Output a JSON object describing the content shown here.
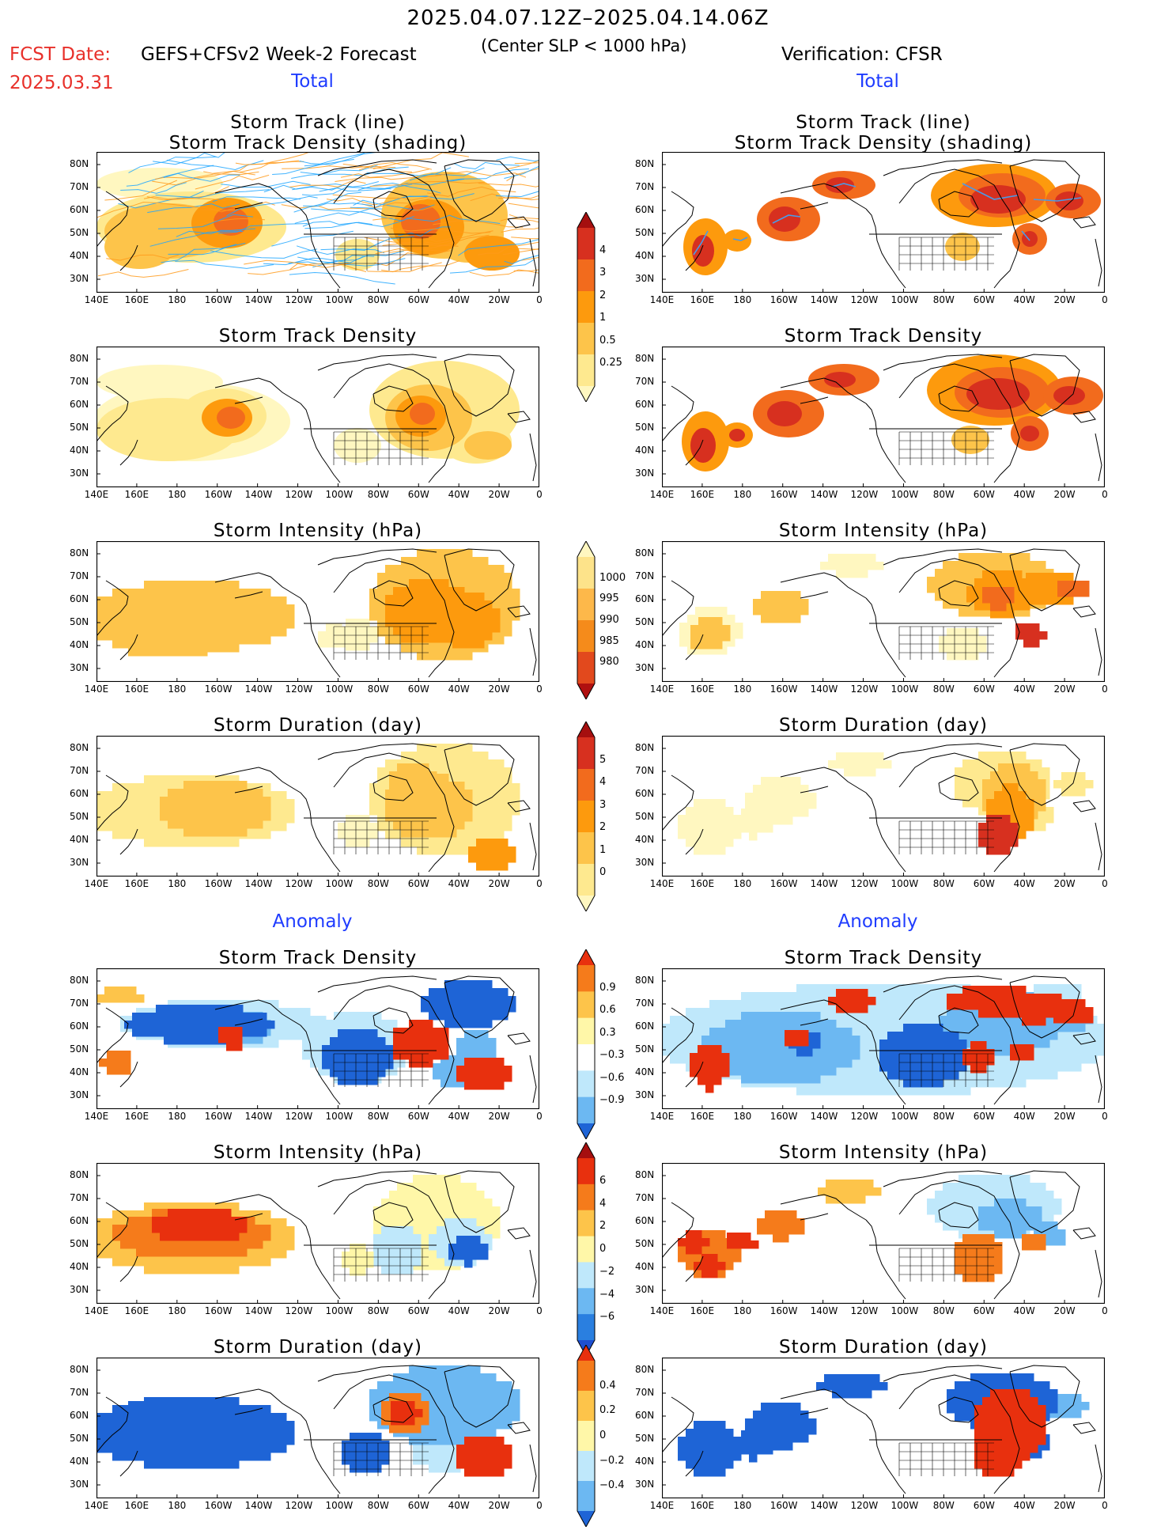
{
  "header": {
    "period": "2025.04.07.12Z–2025.04.14.06Z",
    "fcst_label": "FCST Date:",
    "fcst_date": "2025.03.31",
    "model": "GEFS+CFSv2 Week-2 Forecast",
    "criterion": "(Center SLP < 1000 hPa)",
    "verification": "Verification: CFSR"
  },
  "sections": {
    "total": "Total",
    "anomaly": "Anomaly"
  },
  "axes": {
    "x_ticks": [
      "140E",
      "160E",
      "180",
      "160W",
      "140W",
      "120W",
      "100W",
      "80W",
      "60W",
      "40W",
      "20W",
      "0"
    ],
    "y_ticks": [
      "80N",
      "70N",
      "60N",
      "50N",
      "40N",
      "30N"
    ]
  },
  "panels": [
    {
      "id": "forecast-track",
      "column": "left",
      "title_lines": [
        "Storm Track (line)",
        "Storm Track Density (shading)"
      ]
    },
    {
      "id": "verify-track",
      "column": "right",
      "title_lines": [
        "Storm Track (line)",
        "Storm Track Density (shading)"
      ]
    },
    {
      "id": "forecast-density",
      "column": "left",
      "title_lines": [
        "Storm Track Density"
      ]
    },
    {
      "id": "verify-density",
      "column": "right",
      "title_lines": [
        "Storm Track Density"
      ]
    },
    {
      "id": "forecast-intensity",
      "column": "left",
      "title_lines": [
        "Storm Intensity (hPa)"
      ]
    },
    {
      "id": "verify-intensity",
      "column": "right",
      "title_lines": [
        "Storm Intensity (hPa)"
      ]
    },
    {
      "id": "forecast-duration",
      "column": "left",
      "title_lines": [
        "Storm Duration (day)"
      ]
    },
    {
      "id": "verify-duration",
      "column": "right",
      "title_lines": [
        "Storm Duration (day)"
      ]
    },
    {
      "id": "forecast-density-anom",
      "column": "left",
      "title_lines": [
        "Storm Track Density"
      ]
    },
    {
      "id": "verify-density-anom",
      "column": "right",
      "title_lines": [
        "Storm Track Density"
      ]
    },
    {
      "id": "forecast-intensity-anom",
      "column": "left",
      "title_lines": [
        "Storm Intensity (hPa)"
      ]
    },
    {
      "id": "verify-intensity-anom",
      "column": "right",
      "title_lines": [
        "Storm Intensity (hPa)"
      ]
    },
    {
      "id": "forecast-duration-anom",
      "column": "left",
      "title_lines": [
        "Storm Duration (day)"
      ]
    },
    {
      "id": "verify-duration-anom",
      "column": "right",
      "title_lines": [
        "Storm Duration (day)"
      ]
    }
  ],
  "colorbars": [
    {
      "id": "density",
      "labels": [
        "4",
        "3",
        "2",
        "1",
        "0.5",
        "0.25"
      ],
      "colors": [
        "#a50f0f",
        "#d7301f",
        "#f26b1d",
        "#fd9a0d",
        "#fdc44a",
        "#fee98f",
        "#fff7c0"
      ]
    },
    {
      "id": "intensity",
      "labels": [
        "1000",
        "995",
        "990",
        "985",
        "980"
      ],
      "colors": [
        "#fff7c0",
        "#fde38a",
        "#fdb84a",
        "#f58b1b",
        "#e2491d",
        "#b01010"
      ]
    },
    {
      "id": "duration",
      "labels": [
        "5",
        "4",
        "3",
        "2",
        "1",
        "0"
      ],
      "colors": [
        "#a50f0f",
        "#d7301f",
        "#f26b1d",
        "#fd9a0d",
        "#fdc44a",
        "#fee98f",
        "#fff7c0"
      ]
    },
    {
      "id": "density-anom",
      "labels": [
        "0.9",
        "0.6",
        "0.3",
        "−0.3",
        "−0.6",
        "−0.9"
      ],
      "colors": [
        "#e8300e",
        "#f57b1b",
        "#fdc44a",
        "#fff7a8",
        "#ffffff",
        "#bfe8fb",
        "#6cb8f2",
        "#1e64d6"
      ]
    },
    {
      "id": "intensity-anom",
      "labels": [
        "6",
        "4",
        "2",
        "0",
        "−2",
        "−4",
        "−6"
      ],
      "colors": [
        "#a50f0f",
        "#e8300e",
        "#f57b1b",
        "#fdc44a",
        "#fff7a8",
        "#bfe8fb",
        "#6cb8f2",
        "#2a7fe0",
        "#1e4fd0"
      ]
    },
    {
      "id": "duration-anom",
      "labels": [
        "0.4",
        "0.2",
        "0",
        "−0.2",
        "−0.4"
      ],
      "colors": [
        "#e8300e",
        "#f57b1b",
        "#fdc44a",
        "#fff7a8",
        "#bfe8fb",
        "#6cb8f2",
        "#1e64d6"
      ]
    }
  ],
  "map_colors": {
    "total_scale": [
      "#fff7c0",
      "#fee98f",
      "#fdc44a",
      "#fd9a0d",
      "#f26b1d",
      "#d7301f",
      "#a50f0f"
    ],
    "anom_pos": [
      "#fff7a8",
      "#fdc44a",
      "#f57b1b",
      "#e8300e"
    ],
    "anom_neg": [
      "#bfe8fb",
      "#6cb8f2",
      "#1e64d6"
    ],
    "track_lines": [
      "#1ea6ff",
      "#ff9a1a"
    ]
  }
}
